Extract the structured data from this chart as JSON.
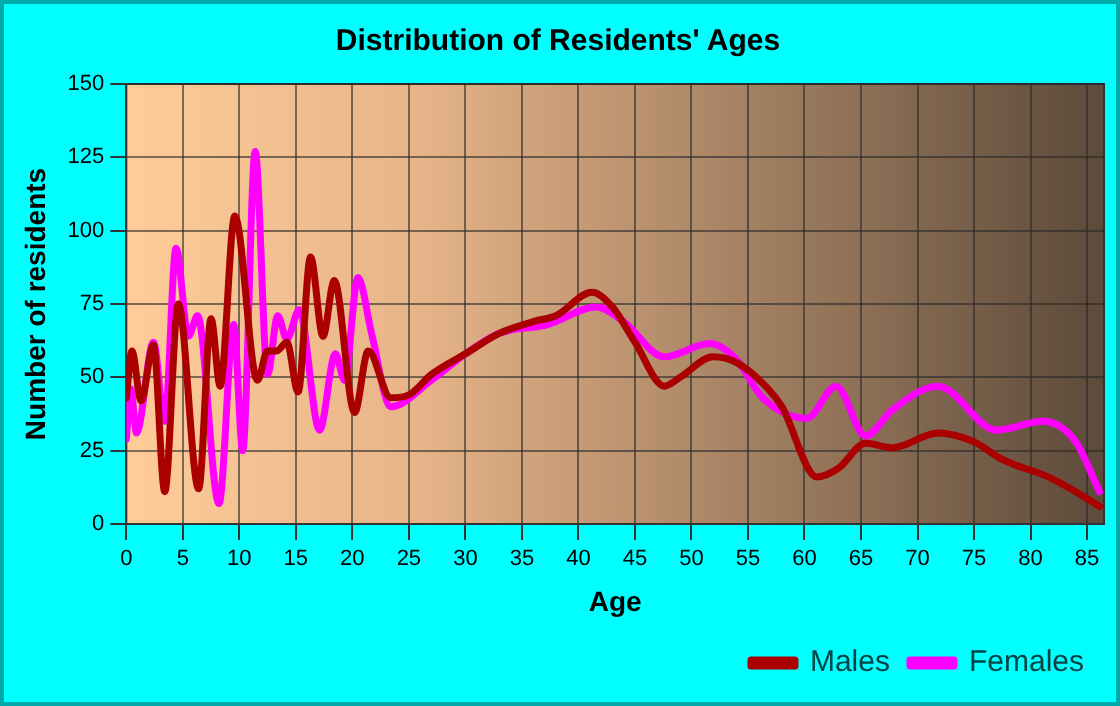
{
  "chart_data": {
    "type": "line",
    "title": "Distribution of Residents' Ages",
    "xlabel": "Age",
    "ylabel": "Number of residents",
    "xlim": [
      0,
      86.5
    ],
    "xticks": [
      0,
      5,
      10,
      15,
      20,
      25,
      30,
      35,
      40,
      45,
      50,
      55,
      60,
      65,
      70,
      75,
      80,
      85
    ],
    "ylim": [
      0,
      150
    ],
    "yticks": [
      0,
      25,
      50,
      75,
      100,
      125,
      150
    ],
    "grid": true,
    "legend": "bottom right",
    "marker": "none",
    "line_style": "solid",
    "series": [
      {
        "name": "Males",
        "color": "#aa0000",
        "x": [
          0,
          0.5,
          1.3,
          2.4,
          3.4,
          4.6,
          6.4,
          7.5,
          8.3,
          9.6,
          11.6,
          12.5,
          13.3,
          14.2,
          15.2,
          16.3,
          17.4,
          18.4,
          20.2,
          21.4,
          23.4,
          25,
          27,
          30,
          33,
          36,
          38,
          41.2,
          43,
          45,
          47.6,
          49,
          51.9,
          54,
          56.8,
          58,
          61.1,
          63,
          65.4,
          67.8,
          71.8,
          75,
          77.5,
          81.6,
          84,
          86.1
        ],
        "values": [
          43,
          59,
          42,
          61,
          11,
          75,
          12,
          70,
          47,
          105,
          49,
          59,
          59,
          62,
          45,
          91,
          64,
          83,
          38,
          59,
          43,
          44,
          51,
          58,
          65,
          69,
          71,
          79,
          74,
          62,
          47,
          50,
          57,
          55,
          46,
          40,
          16,
          19,
          27.5,
          26,
          31,
          28,
          22,
          16,
          11,
          6
        ]
      },
      {
        "name": "Females",
        "color": "#ff00ff",
        "x": [
          0,
          0.4,
          0.9,
          2.4,
          3.4,
          4.4,
          5.5,
          6.3,
          8.2,
          9.5,
          10.3,
          11.4,
          12.5,
          13.4,
          14.2,
          15.3,
          17.1,
          18.5,
          19.3,
          20.5,
          21.7,
          23.4,
          27,
          30,
          33,
          37.3,
          41.6,
          44,
          47.6,
          51.6,
          54,
          56.3,
          60.2,
          62.8,
          65.4,
          67.8,
          71.8,
          77,
          81.1,
          84,
          86.1
        ],
        "values": [
          29,
          46,
          31,
          62,
          35,
          94,
          64,
          71,
          7,
          68,
          25,
          127,
          51,
          71,
          63,
          73,
          32,
          58,
          49,
          84,
          65,
          40,
          49,
          58,
          65,
          68,
          74,
          69,
          57,
          61.5,
          56,
          43,
          36,
          47,
          30,
          39,
          47,
          32,
          35,
          28,
          11
        ]
      }
    ]
  }
}
